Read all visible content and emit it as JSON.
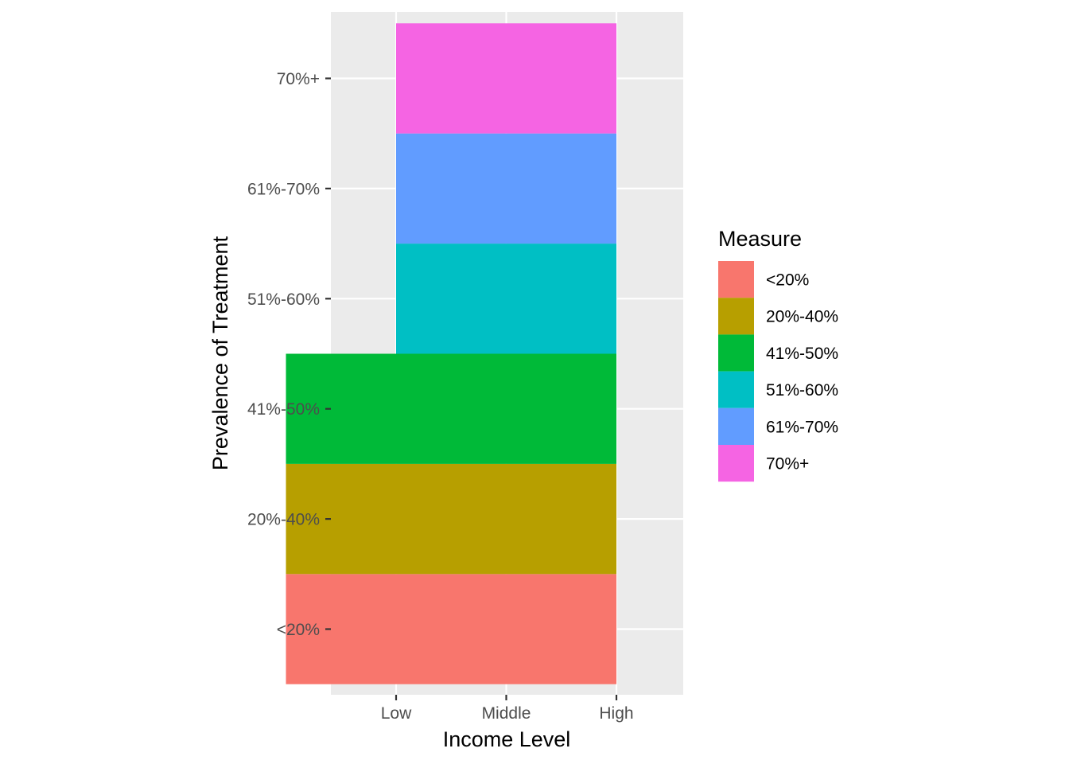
{
  "chart_data": {
    "type": "heatmap",
    "title": "",
    "xlabel": "Income Level",
    "ylabel": "Prevalence of Treatment",
    "x_categories": [
      "Low",
      "Middle",
      "High"
    ],
    "y_categories": [
      "<20%",
      "20%-40%",
      "41%-50%",
      "51%-60%",
      "61%-70%",
      "70%+"
    ],
    "tiles": [
      {
        "x": 1.5,
        "y": "<20%",
        "width": 3,
        "fill": "<20%"
      },
      {
        "x": 1.5,
        "y": "20%-40%",
        "width": 3,
        "fill": "20%-40%"
      },
      {
        "x": 1.5,
        "y": "41%-50%",
        "width": 3,
        "fill": "41%-50%"
      },
      {
        "x": 2.0,
        "y": "51%-60%",
        "width": 2,
        "fill": "51%-60%"
      },
      {
        "x": 2.0,
        "y": "61%-70%",
        "width": 2,
        "fill": "61%-70%"
      },
      {
        "x": 2.0,
        "y": "70%+",
        "width": 2,
        "fill": "70%+"
      }
    ],
    "legend": {
      "title": "Measure",
      "placement": "right",
      "entries": [
        {
          "label": "<20%",
          "color": "#F8766D"
        },
        {
          "label": "20%-40%",
          "color": "#B79F00"
        },
        {
          "label": "41%-50%",
          "color": "#00BA38"
        },
        {
          "label": "51%-60%",
          "color": "#00BFC4"
        },
        {
          "label": "61%-70%",
          "color": "#619CFF"
        },
        {
          "label": "70%+",
          "color": "#F564E3"
        }
      ]
    },
    "panel_background": "#EBEBEB",
    "grid": true
  }
}
